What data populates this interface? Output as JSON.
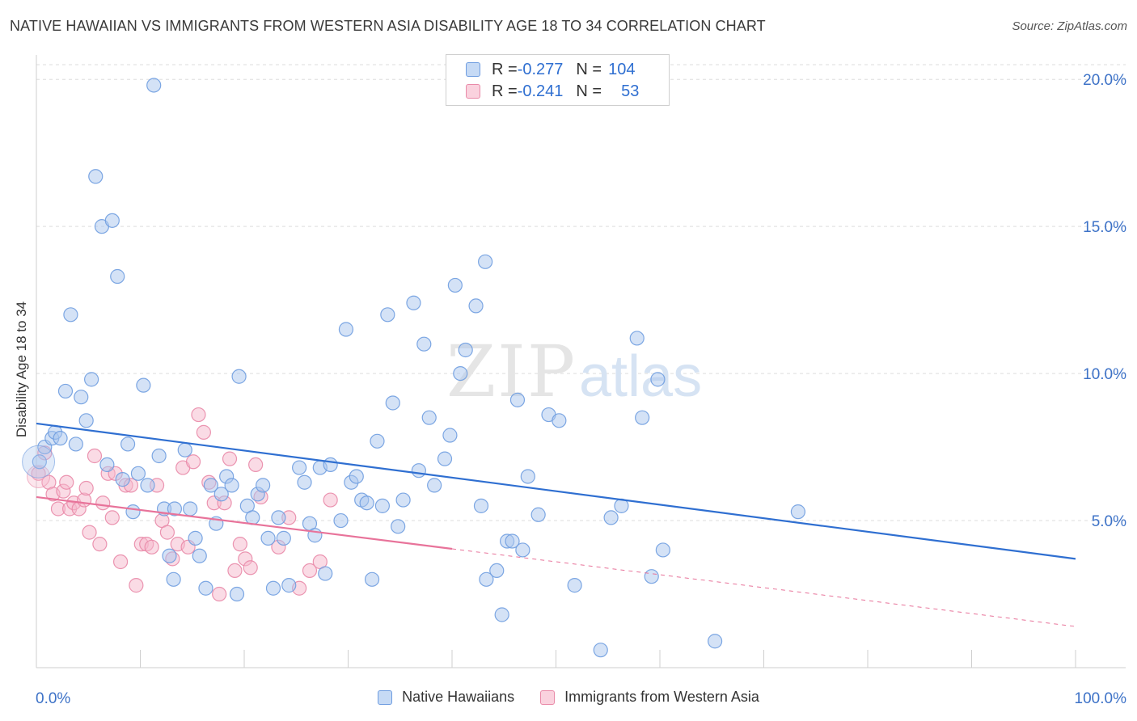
{
  "title": "NATIVE HAWAIIAN VS IMMIGRANTS FROM WESTERN ASIA DISABILITY AGE 18 TO 34 CORRELATION CHART",
  "source": "Source: ZipAtlas.com",
  "watermark": {
    "zip": "ZIP",
    "atlas": "atlas"
  },
  "legend_stats": [
    {
      "r_label": "R = ",
      "r_value": "-0.277",
      "n_label": "N = ",
      "n_value": "104"
    },
    {
      "r_label": "R = ",
      "r_value": "-0.241",
      "n_label": "N = ",
      "n_value": "53"
    }
  ],
  "colors": {
    "blue_fill": "#a9c6ee",
    "blue_stroke": "#6f9de0",
    "blue_line": "#2f6fd1",
    "pink_fill": "#f5b8cc",
    "pink_stroke": "#e98aa8",
    "pink_line": "#e8739a",
    "axis_text": "#3d72c7",
    "grid": "#dddddd"
  },
  "chart_data": {
    "type": "scatter",
    "title": "NATIVE HAWAIIAN VS IMMIGRANTS FROM WESTERN ASIA DISABILITY AGE 18 TO 34 CORRELATION CHART",
    "xlabel": "",
    "ylabel": "Disability Age 18 to 34",
    "xlim": [
      0,
      100
    ],
    "ylim": [
      0,
      20.5
    ],
    "x_tick_labels": [
      "0.0%",
      "100.0%"
    ],
    "y_ticks": [
      5,
      10,
      15,
      20
    ],
    "y_tick_labels": [
      "5.0%",
      "10.0%",
      "15.0%",
      "20.0%"
    ],
    "grid": true,
    "legend_position": "bottom",
    "series": [
      {
        "name": "Native Hawaiians",
        "color": "#a9c6ee",
        "trend": {
          "x": [
            0,
            100
          ],
          "y": [
            8.3,
            3.7
          ],
          "dashed_from": null
        },
        "points": [
          [
            0.3,
            7.0
          ],
          [
            0.8,
            7.5
          ],
          [
            1.5,
            7.8
          ],
          [
            1.8,
            8.0
          ],
          [
            2.3,
            7.8
          ],
          [
            2.8,
            9.4
          ],
          [
            3.3,
            12.0
          ],
          [
            3.8,
            7.6
          ],
          [
            4.3,
            9.2
          ],
          [
            4.8,
            8.4
          ],
          [
            5.3,
            9.8
          ],
          [
            5.7,
            16.7
          ],
          [
            6.3,
            15.0
          ],
          [
            6.8,
            6.9
          ],
          [
            7.3,
            15.2
          ],
          [
            7.8,
            13.3
          ],
          [
            8.3,
            6.4
          ],
          [
            8.8,
            7.6
          ],
          [
            9.3,
            5.3
          ],
          [
            9.8,
            6.6
          ],
          [
            10.3,
            9.6
          ],
          [
            10.7,
            6.2
          ],
          [
            11.3,
            19.8
          ],
          [
            11.8,
            7.2
          ],
          [
            12.3,
            5.4
          ],
          [
            12.8,
            3.8
          ],
          [
            13.2,
            3.0
          ],
          [
            13.3,
            5.4
          ],
          [
            14.3,
            7.4
          ],
          [
            14.8,
            5.4
          ],
          [
            15.3,
            4.4
          ],
          [
            15.7,
            3.8
          ],
          [
            16.3,
            2.7
          ],
          [
            16.8,
            6.2
          ],
          [
            17.3,
            4.9
          ],
          [
            17.8,
            5.9
          ],
          [
            18.3,
            6.5
          ],
          [
            18.8,
            6.2
          ],
          [
            19.3,
            2.5
          ],
          [
            19.5,
            9.9
          ],
          [
            20.3,
            5.5
          ],
          [
            20.8,
            5.1
          ],
          [
            21.3,
            5.9
          ],
          [
            21.8,
            6.2
          ],
          [
            22.3,
            4.4
          ],
          [
            22.8,
            2.7
          ],
          [
            23.3,
            5.1
          ],
          [
            23.8,
            4.4
          ],
          [
            24.3,
            2.8
          ],
          [
            25.3,
            6.8
          ],
          [
            25.8,
            6.3
          ],
          [
            26.3,
            4.9
          ],
          [
            26.8,
            4.5
          ],
          [
            27.3,
            6.8
          ],
          [
            27.8,
            3.2
          ],
          [
            28.3,
            6.9
          ],
          [
            29.3,
            5.0
          ],
          [
            29.8,
            11.5
          ],
          [
            30.3,
            6.3
          ],
          [
            30.8,
            6.5
          ],
          [
            31.3,
            5.7
          ],
          [
            31.8,
            5.6
          ],
          [
            32.3,
            3.0
          ],
          [
            32.8,
            7.7
          ],
          [
            33.3,
            5.5
          ],
          [
            33.8,
            12.0
          ],
          [
            34.3,
            9.0
          ],
          [
            34.8,
            4.8
          ],
          [
            35.3,
            5.7
          ],
          [
            36.3,
            12.4
          ],
          [
            36.8,
            6.7
          ],
          [
            37.3,
            11.0
          ],
          [
            37.8,
            8.5
          ],
          [
            38.3,
            6.2
          ],
          [
            39.3,
            7.1
          ],
          [
            39.8,
            7.9
          ],
          [
            40.3,
            13.0
          ],
          [
            40.8,
            10.0
          ],
          [
            41.3,
            10.8
          ],
          [
            42.3,
            12.3
          ],
          [
            43.2,
            13.8
          ],
          [
            42.8,
            5.5
          ],
          [
            43.3,
            3.0
          ],
          [
            44.3,
            3.3
          ],
          [
            45.3,
            4.3
          ],
          [
            44.8,
            1.8
          ],
          [
            45.8,
            4.3
          ],
          [
            46.3,
            9.1
          ],
          [
            46.8,
            4.0
          ],
          [
            47.3,
            6.5
          ],
          [
            48.3,
            5.2
          ],
          [
            49.3,
            8.6
          ],
          [
            50.3,
            8.4
          ],
          [
            51.8,
            2.8
          ],
          [
            54.3,
            0.6
          ],
          [
            55.3,
            5.1
          ],
          [
            56.3,
            5.5
          ],
          [
            57.8,
            11.2
          ],
          [
            58.3,
            8.5
          ],
          [
            59.2,
            3.1
          ],
          [
            59.8,
            9.8
          ],
          [
            60.3,
            4.0
          ],
          [
            65.3,
            0.9
          ],
          [
            73.3,
            5.3
          ]
        ]
      },
      {
        "name": "Immigrants from Western Asia",
        "color": "#f5b8cc",
        "trend": {
          "x": [
            0,
            100
          ],
          "y": [
            5.8,
            1.4
          ],
          "dashed_from": 40
        },
        "points": [
          [
            0.2,
            6.6
          ],
          [
            0.8,
            7.3
          ],
          [
            1.2,
            6.3
          ],
          [
            1.6,
            5.9
          ],
          [
            2.1,
            5.4
          ],
          [
            2.6,
            6.0
          ],
          [
            2.9,
            6.3
          ],
          [
            3.2,
            5.4
          ],
          [
            3.6,
            5.6
          ],
          [
            4.1,
            5.4
          ],
          [
            4.6,
            5.7
          ],
          [
            4.8,
            6.1
          ],
          [
            5.1,
            4.6
          ],
          [
            5.6,
            7.2
          ],
          [
            6.1,
            4.2
          ],
          [
            6.4,
            5.6
          ],
          [
            6.9,
            6.6
          ],
          [
            7.3,
            5.1
          ],
          [
            7.6,
            6.6
          ],
          [
            8.1,
            3.6
          ],
          [
            8.6,
            6.2
          ],
          [
            9.1,
            6.2
          ],
          [
            9.6,
            2.8
          ],
          [
            10.1,
            4.2
          ],
          [
            10.6,
            4.2
          ],
          [
            11.1,
            4.1
          ],
          [
            11.6,
            6.2
          ],
          [
            12.1,
            5.0
          ],
          [
            12.6,
            4.6
          ],
          [
            13.1,
            3.7
          ],
          [
            13.6,
            4.2
          ],
          [
            14.1,
            6.8
          ],
          [
            14.6,
            4.1
          ],
          [
            15.1,
            7.0
          ],
          [
            15.6,
            8.6
          ],
          [
            16.1,
            8.0
          ],
          [
            16.6,
            6.3
          ],
          [
            17.1,
            5.6
          ],
          [
            17.6,
            2.5
          ],
          [
            18.1,
            5.6
          ],
          [
            18.6,
            7.1
          ],
          [
            19.1,
            3.3
          ],
          [
            19.6,
            4.2
          ],
          [
            20.1,
            3.7
          ],
          [
            20.6,
            3.4
          ],
          [
            21.1,
            6.9
          ],
          [
            21.6,
            5.8
          ],
          [
            23.3,
            4.1
          ],
          [
            24.3,
            5.1
          ],
          [
            25.3,
            2.7
          ],
          [
            26.3,
            3.3
          ],
          [
            27.3,
            3.6
          ],
          [
            28.3,
            5.7
          ]
        ]
      }
    ]
  }
}
